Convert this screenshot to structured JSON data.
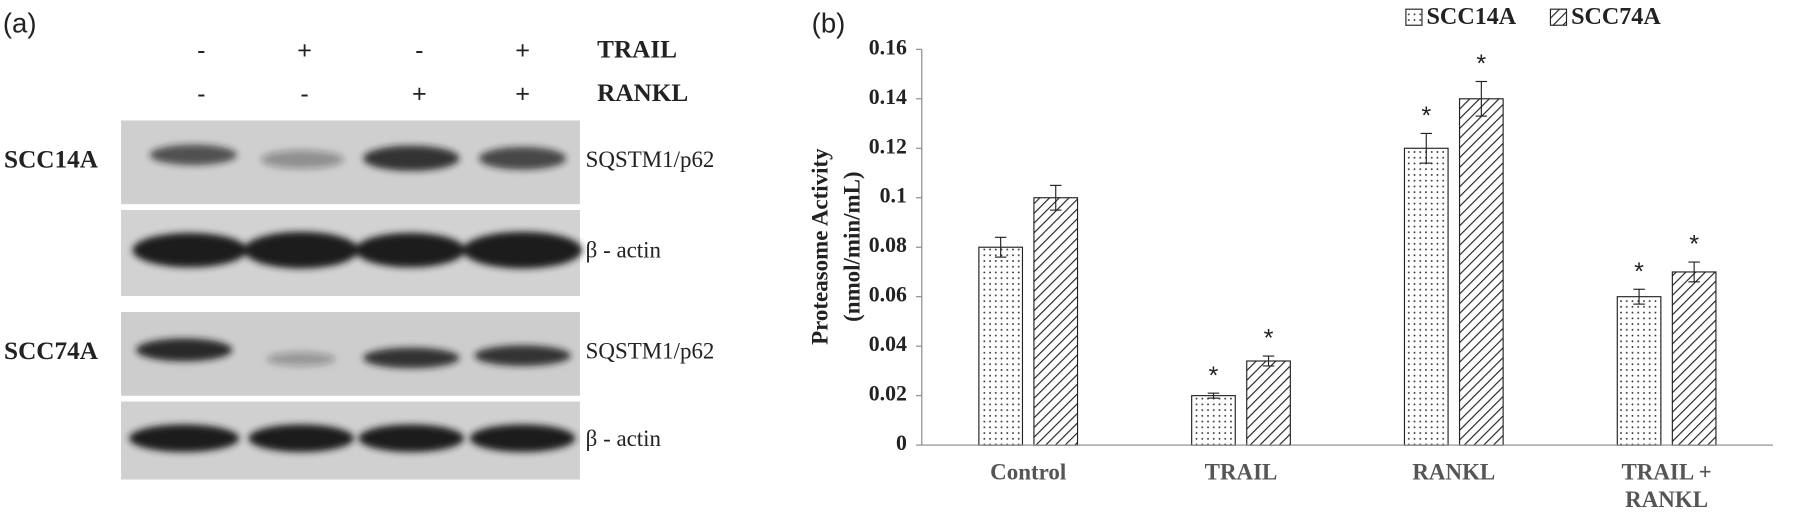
{
  "panel_a": {
    "label": "(a)",
    "treatments": [
      {
        "name": "TRAIL",
        "signs": [
          "-",
          "+",
          "-",
          "+"
        ]
      },
      {
        "name": "RANKL",
        "signs": [
          "-",
          "-",
          "+",
          "+"
        ]
      }
    ],
    "cell_lines": [
      {
        "name": "SCC14A",
        "bands": [
          "SQSTM1/p62",
          "β - actin"
        ]
      },
      {
        "name": "SCC74A",
        "bands": [
          "SQSTM1/p62",
          "β - actin"
        ]
      }
    ]
  },
  "chart_data": {
    "type": "bar",
    "panel_label": "(b)",
    "ylabel": [
      "Proteasome Activity",
      "(nmol/min/mL)"
    ],
    "categories": [
      "Control",
      "TRAIL",
      "RANKL",
      "TRAIL + RANKL"
    ],
    "series": [
      {
        "name": "SCC14A",
        "pattern": "dots",
        "color": "#222222",
        "values": [
          0.08,
          0.02,
          0.12,
          0.06
        ],
        "errors": [
          0.004,
          0.001,
          0.006,
          0.003
        ],
        "significance": [
          null,
          "*",
          "*",
          "*"
        ]
      },
      {
        "name": "SCC74A",
        "pattern": "hatch",
        "color": "#222222",
        "values": [
          0.1,
          0.034,
          0.14,
          0.07
        ],
        "errors": [
          0.005,
          0.002,
          0.007,
          0.004
        ],
        "significance": [
          null,
          "*",
          "*",
          "*"
        ]
      }
    ],
    "ylim": [
      0,
      0.16
    ],
    "yticks": [
      0,
      0.02,
      0.04,
      0.06,
      0.08,
      0.1,
      0.12,
      0.14,
      0.16
    ],
    "grid": false,
    "legend": "top"
  }
}
